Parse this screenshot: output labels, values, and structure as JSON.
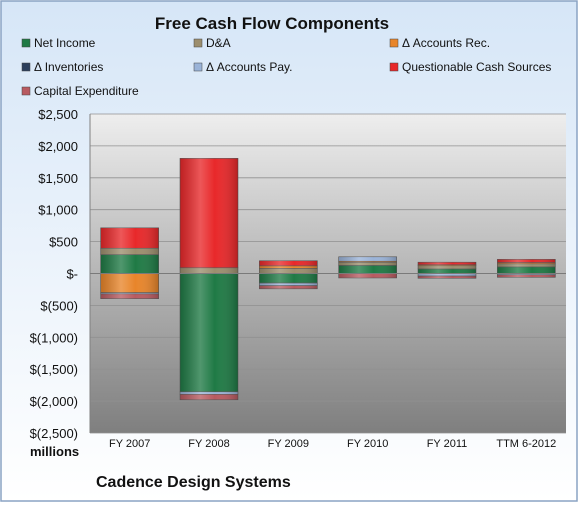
{
  "chart_data": {
    "type": "bar",
    "stacked": true,
    "title": "Free Cash Flow Components",
    "subtitle_bottom": "Cadence Design Systems",
    "unit_label": "millions",
    "categories": [
      "FY 2007",
      "FY 2008",
      "FY 2009",
      "FY 2010",
      "FY 2011",
      "TTM 6-2012"
    ],
    "ylim": [
      -2500,
      2500
    ],
    "yticks": [
      2500,
      2000,
      1500,
      1000,
      500,
      0,
      -500,
      -1000,
      -1500,
      -2000,
      -2500
    ],
    "ytick_labels": [
      "$2,500",
      "$2,000",
      "$1,500",
      "$1,000",
      "$500",
      "$-",
      "$(500)",
      "$(1,000)",
      "$(1,500)",
      "$(2,000)",
      "$(2,500)"
    ],
    "grid": true,
    "legend_position": "top",
    "series": [
      {
        "name": "Net Income",
        "color": "#1f7a45",
        "values": [
          296,
          -1854,
          -150,
          127,
          72,
          104
        ]
      },
      {
        "name": "D&A",
        "color": "#9c8e6e",
        "values": [
          100,
          90,
          80,
          55,
          50,
          48
        ]
      },
      {
        "name": "Δ Accounts Rec.",
        "color": "#e8852a",
        "values": [
          -300,
          0,
          40,
          10,
          15,
          20
        ]
      },
      {
        "name": "Δ Inventories",
        "color": "#2b3f5c",
        "values": [
          0,
          0,
          0,
          0,
          0,
          0
        ]
      },
      {
        "name": "Δ Accounts Pay.",
        "color": "#9ab3d8",
        "values": [
          -20,
          -40,
          -40,
          70,
          -40,
          -20
        ]
      },
      {
        "name": "Questionable Cash Sources",
        "color": "#e8282a",
        "values": [
          320,
          1715,
          80,
          0,
          40,
          50
        ]
      },
      {
        "name": "Capital Expenditure",
        "color": "#b85a60",
        "values": [
          -75,
          -85,
          -50,
          -70,
          -35,
          -40
        ]
      }
    ]
  }
}
